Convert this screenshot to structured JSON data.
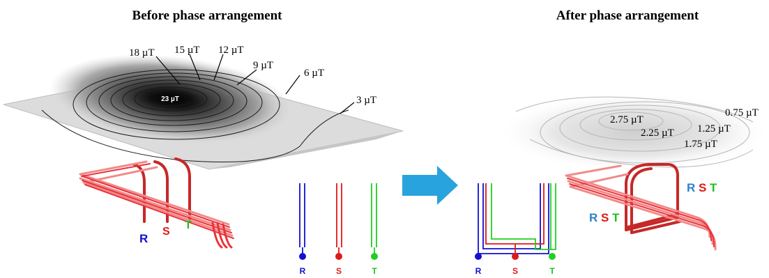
{
  "titles": {
    "before": "Before phase arrangement",
    "after": "After phase arrangement"
  },
  "before_contours": {
    "center": "23 µT",
    "levels": [
      "18 µT",
      "15 µT",
      "12 µT",
      "9 µT",
      "6 µT",
      "3 µT"
    ]
  },
  "after_contours": {
    "levels": [
      "2.75 µT",
      "2.25 µT",
      "1.75 µT",
      "1.25 µT",
      "0.75 µT"
    ]
  },
  "phases": {
    "r": "R",
    "s": "S",
    "t": "T"
  },
  "colors": {
    "r": "#1010d0",
    "s": "#e01818",
    "t": "#20d020",
    "r_label_after": "#2f80c8",
    "s_label_after": "#e01818",
    "t_label_after": "#20c020",
    "arrow": "#29a3dd",
    "conductor": "#e8333a",
    "conductor_light": "#f28a8a"
  },
  "icons": {
    "arrow": "right-arrow-icon"
  }
}
